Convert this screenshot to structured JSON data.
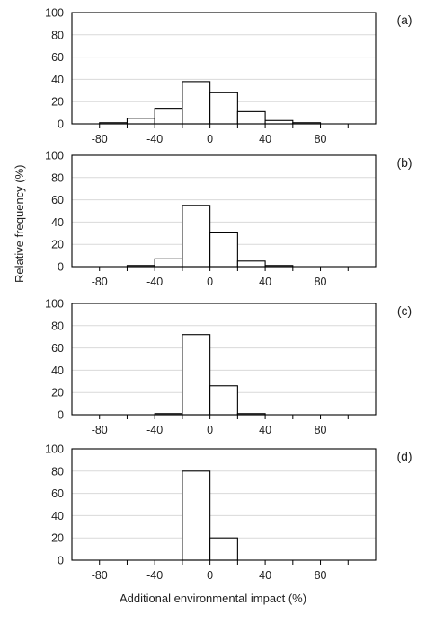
{
  "figure": {
    "ylabel": "Relative frequency (%)",
    "xlabel": "Additional environmental impact (%)"
  },
  "chart_data": [
    {
      "type": "bar",
      "panel_label": "(a)",
      "bin_width": 20,
      "bin_centers": [
        -90,
        -70,
        -50,
        -30,
        -10,
        10,
        30,
        50,
        70,
        90,
        110
      ],
      "values": [
        0,
        1,
        5,
        14,
        38,
        28,
        11,
        3,
        1,
        0,
        0
      ],
      "xlim": [
        -100,
        120
      ],
      "xticks": [
        -80,
        -40,
        0,
        40,
        80
      ],
      "ylim": [
        0,
        100
      ],
      "yticks": [
        0,
        20,
        40,
        60,
        80,
        100
      ],
      "grid": true
    },
    {
      "type": "bar",
      "panel_label": "(b)",
      "bin_width": 20,
      "bin_centers": [
        -90,
        -70,
        -50,
        -30,
        -10,
        10,
        30,
        50,
        70,
        90,
        110
      ],
      "values": [
        0,
        0,
        1,
        7,
        55,
        31,
        5,
        1,
        0,
        0,
        0
      ],
      "xlim": [
        -100,
        120
      ],
      "xticks": [
        -80,
        -40,
        0,
        40,
        80
      ],
      "ylim": [
        0,
        100
      ],
      "yticks": [
        0,
        20,
        40,
        60,
        80,
        100
      ],
      "grid": true
    },
    {
      "type": "bar",
      "panel_label": "(c)",
      "bin_width": 20,
      "bin_centers": [
        -90,
        -70,
        -50,
        -30,
        -10,
        10,
        30,
        50,
        70,
        90,
        110
      ],
      "values": [
        0,
        0,
        0,
        1,
        72,
        26,
        1,
        0,
        0,
        0,
        0
      ],
      "xlim": [
        -100,
        120
      ],
      "xticks": [
        -80,
        -40,
        0,
        40,
        80
      ],
      "ylim": [
        0,
        100
      ],
      "yticks": [
        0,
        20,
        40,
        60,
        80,
        100
      ],
      "grid": true
    },
    {
      "type": "bar",
      "panel_label": "(d)",
      "bin_width": 20,
      "bin_centers": [
        -90,
        -70,
        -50,
        -30,
        -10,
        10,
        30,
        50,
        70,
        90,
        110
      ],
      "values": [
        0,
        0,
        0,
        0,
        80,
        20,
        0,
        0,
        0,
        0,
        0
      ],
      "xlim": [
        -100,
        120
      ],
      "xticks": [
        -80,
        -40,
        0,
        40,
        80
      ],
      "ylim": [
        0,
        100
      ],
      "yticks": [
        0,
        20,
        40,
        60,
        80,
        100
      ],
      "grid": true
    }
  ]
}
